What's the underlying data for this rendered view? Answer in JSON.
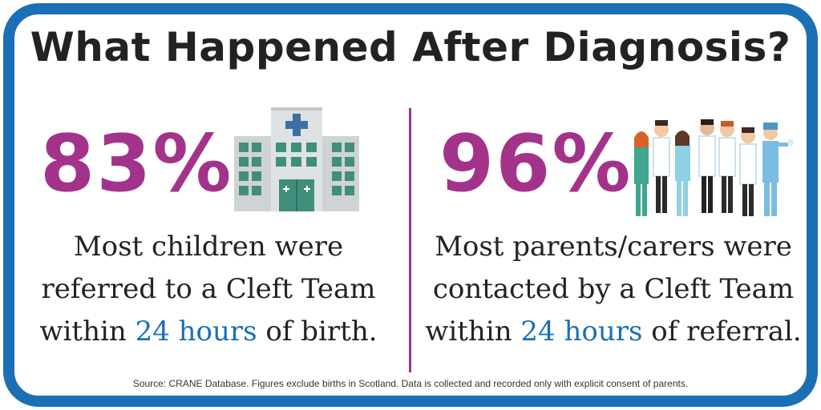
{
  "title": "What Happened After Diagnosis?",
  "left": {
    "stat": "83%",
    "line1": "Most children were",
    "line2": "referred to a Cleft Team",
    "line3_pre": "within ",
    "line3_highlight": "24 hours",
    "line3_post": " of birth.",
    "icon": "hospital-icon"
  },
  "right": {
    "stat": "96%",
    "line1": "Most parents/carers were",
    "line2": "contacted by a Cleft Team",
    "line3_pre": "within ",
    "line3_highlight": "24 hours",
    "line3_post": " of referral.",
    "icon": "medical-staff-icon"
  },
  "source": "Source: CRANE Database. Figures exclude births in Scotland. Data is collected and recorded only with explicit consent of parents.",
  "colors": {
    "frame": "#1a6fb5",
    "stat": "#a3338a",
    "highlight": "#1a6fb5",
    "text": "#222222"
  }
}
